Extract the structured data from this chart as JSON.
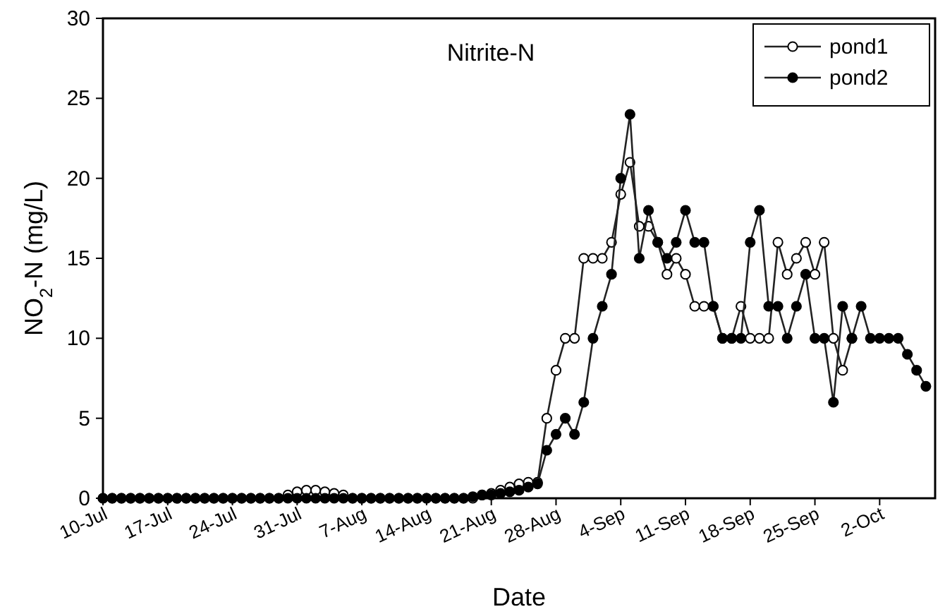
{
  "chart_data": {
    "type": "line",
    "title": "Nitrite-N",
    "xlabel": "Date",
    "ylabel": "NO$_{2}$-N (mg/L)",
    "x": [
      "--07-10",
      "--07-11",
      "--07-12",
      "--07-13",
      "--07-14",
      "--07-15",
      "--07-16",
      "--07-17",
      "--07-18",
      "--07-19",
      "--07-20",
      "--07-21",
      "--07-22",
      "--07-23",
      "--07-24",
      "--07-25",
      "--07-26",
      "--07-27",
      "--07-28",
      "--07-29",
      "--07-30",
      "--07-31",
      "--08-01",
      "--08-02",
      "--08-03",
      "--08-04",
      "--08-05",
      "--08-06",
      "--08-07",
      "--08-08",
      "--08-09",
      "--08-10",
      "--08-11",
      "--08-12",
      "--08-13",
      "--08-14",
      "--08-15",
      "--08-16",
      "--08-17",
      "--08-18",
      "--08-19",
      "--08-20",
      "--08-21",
      "--08-22",
      "--08-23",
      "--08-24",
      "--08-25",
      "--08-26",
      "--08-27",
      "--08-28",
      "--08-29",
      "--08-30",
      "--08-31",
      "--09-01",
      "--09-02",
      "--09-03",
      "--09-04",
      "--09-05",
      "--09-06",
      "--09-07",
      "--09-08",
      "--09-09",
      "--09-10",
      "--09-11",
      "--09-12",
      "--09-13",
      "--09-14",
      "--09-15",
      "--09-16",
      "--09-17",
      "--09-18",
      "--09-19",
      "--09-20",
      "--09-21",
      "--09-22",
      "--09-23",
      "--09-24",
      "--09-25",
      "--09-26",
      "--09-27",
      "--09-28",
      "--09-29",
      "--09-30",
      "--10-01",
      "--10-02",
      "--10-03",
      "--10-04",
      "--10-05",
      "--10-06",
      "--10-07"
    ],
    "series": [
      {
        "name": "pond1",
        "color": "#ffffff",
        "values": [
          0,
          0,
          0,
          0,
          0,
          0,
          0,
          0,
          0,
          0,
          0,
          0,
          0,
          0,
          0,
          0,
          0,
          0,
          0,
          0,
          0.2,
          0.4,
          0.5,
          0.5,
          0.4,
          0.3,
          0.2,
          0,
          0,
          0,
          0,
          0,
          0,
          0,
          0,
          0,
          0,
          0,
          0,
          0,
          0,
          0.2,
          0.3,
          0.5,
          0.7,
          0.9,
          1,
          1,
          5,
          8,
          10,
          10,
          15,
          15,
          15,
          16,
          19,
          21,
          17,
          17,
          16,
          14,
          15,
          14,
          12,
          12,
          12,
          10,
          10,
          12,
          10,
          10,
          10,
          16,
          14,
          15,
          16,
          14,
          16,
          10,
          8,
          10,
          null,
          null,
          null,
          null,
          null,
          null,
          null,
          null
        ]
      },
      {
        "name": "pond2",
        "color": "#000000",
        "values": [
          0,
          0,
          0,
          0,
          0,
          0,
          0,
          0,
          0,
          0,
          0,
          0,
          0,
          0,
          0,
          0,
          0,
          0,
          0,
          0,
          0,
          0,
          0,
          0,
          0,
          0,
          0,
          0,
          0,
          0,
          0,
          0,
          0,
          0,
          0,
          0,
          0,
          0,
          0,
          0,
          0.1,
          0.2,
          0.2,
          0.3,
          0.4,
          0.5,
          0.7,
          0.9,
          3,
          4,
          5,
          4,
          6,
          10,
          12,
          14,
          20,
          24,
          15,
          18,
          16,
          15,
          16,
          18,
          16,
          16,
          12,
          10,
          10,
          10,
          16,
          18,
          12,
          12,
          10,
          12,
          14,
          10,
          10,
          6,
          12,
          10,
          12,
          10,
          10,
          10,
          10,
          9,
          8,
          7
        ]
      }
    ],
    "xlim": [
      "--07-10",
      "--10-08"
    ],
    "xticks": [
      {
        "value": "--07-10",
        "label": "10-Jul"
      },
      {
        "value": "--07-17",
        "label": "17-Jul"
      },
      {
        "value": "--07-24",
        "label": "24-Jul"
      },
      {
        "value": "--07-31",
        "label": "31-Jul"
      },
      {
        "value": "--08-07",
        "label": "7-Aug"
      },
      {
        "value": "--08-14",
        "label": "14-Aug"
      },
      {
        "value": "--08-21",
        "label": "21-Aug"
      },
      {
        "value": "--08-28",
        "label": "28-Aug"
      },
      {
        "value": "--09-04",
        "label": "4-Sep"
      },
      {
        "value": "--09-11",
        "label": "11-Sep"
      },
      {
        "value": "--09-18",
        "label": "18-Sep"
      },
      {
        "value": "--09-25",
        "label": "25-Sep"
      },
      {
        "value": "--10-02",
        "label": "2-Oct"
      }
    ],
    "ylim": [
      0,
      30
    ],
    "yticks": [
      0,
      5,
      10,
      15,
      20,
      25,
      30
    ],
    "grid": false,
    "legend": "top right",
    "marker": "circle",
    "line_style": "solid"
  }
}
